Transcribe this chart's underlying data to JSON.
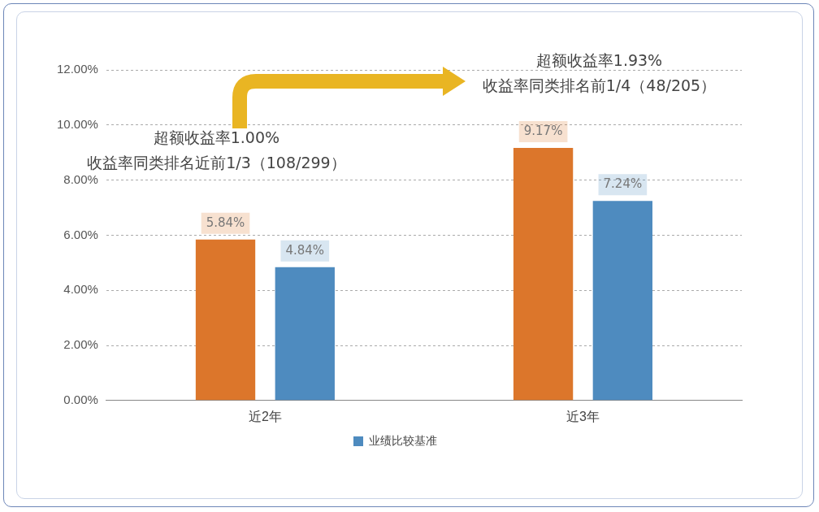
{
  "chart_data": {
    "type": "bar",
    "categories": [
      "近2年",
      "近3年"
    ],
    "series": [
      {
        "color": "#dc762b",
        "values": [
          5.84,
          9.17
        ]
      },
      {
        "name": "业绩比较基准",
        "color": "#4e8bbf",
        "values": [
          4.84,
          7.24
        ]
      }
    ],
    "ylim": [
      0,
      12
    ],
    "yticks": [
      {
        "value": 0,
        "label": "0.00%"
      },
      {
        "value": 2,
        "label": "2.00%"
      },
      {
        "value": 4,
        "label": "4.00%"
      },
      {
        "value": 6,
        "label": "6.00%"
      },
      {
        "value": 8,
        "label": "8.00%"
      },
      {
        "value": 10,
        "label": "10.00%"
      },
      {
        "value": 12,
        "label": "12.00%"
      }
    ],
    "value_labels": [
      [
        "5.84%",
        "9.17%"
      ],
      [
        "4.84%",
        "7.24%"
      ]
    ],
    "annotations": [
      "超额收益率1.00%",
      "收益率同类排名近前1/3（108/299）",
      "超额收益率1.93%",
      "收益率同类排名前1/4（48/205）"
    ],
    "grid": "y",
    "legend": "bottom"
  }
}
